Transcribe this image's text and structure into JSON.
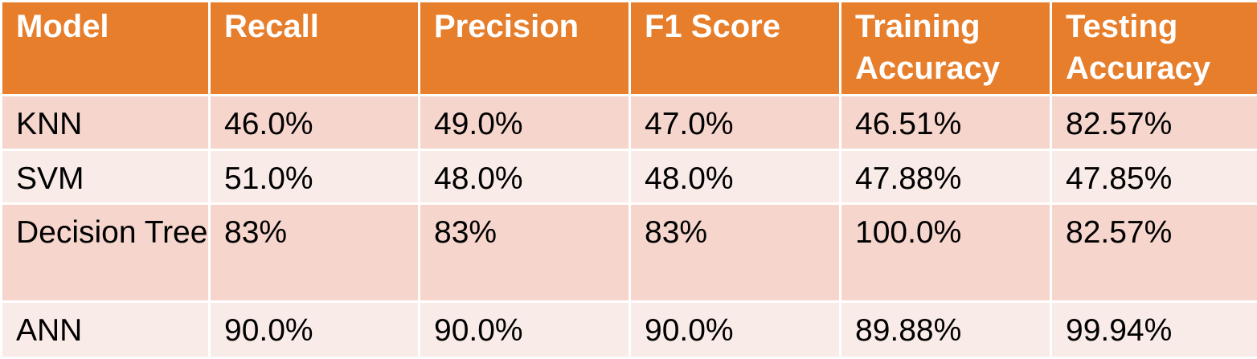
{
  "chart_data": {
    "type": "table",
    "columns": [
      "Model",
      "Recall",
      "Precision",
      "F1 Score",
      "Training Accuracy",
      "Testing Accuracy"
    ],
    "rows": [
      [
        "KNN",
        "46.0%",
        "49.0%",
        "47.0%",
        "46.51%",
        "82.57%"
      ],
      [
        "SVM",
        "51.0%",
        "48.0%",
        "48.0%",
        "47.88%",
        "47.85%"
      ],
      [
        "Decision Tree",
        "83%",
        "83%",
        "83%",
        "100.0%",
        "82.57%"
      ],
      [
        "ANN",
        "90.0%",
        "90.0%",
        "90.0%",
        "89.88%",
        "99.94%"
      ]
    ]
  },
  "colors": {
    "header_bg": "#e77e2c",
    "row_dark": "#f5d5cc",
    "row_light": "#f9ebe8"
  }
}
